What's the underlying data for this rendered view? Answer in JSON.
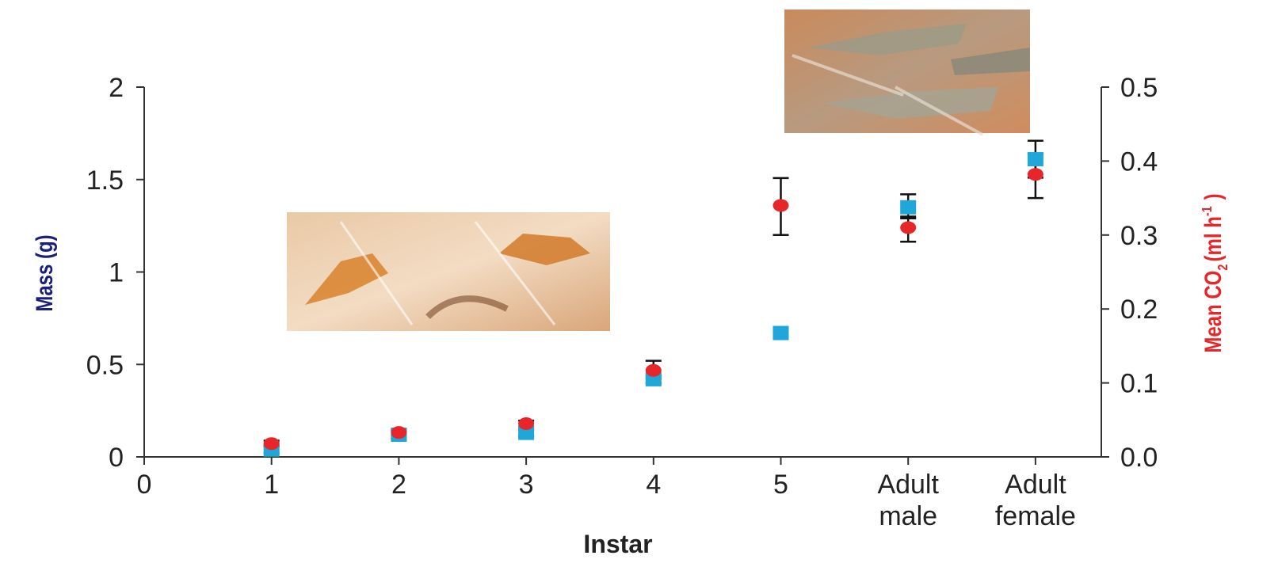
{
  "chart_data": {
    "type": "scatter",
    "title": "",
    "xlabel": "Instar",
    "ylabel_left": "Mass (g)",
    "ylabel_right": {
      "main": "Mean CO",
      "sub": "2",
      "unit": "(ml h",
      "sup": "-1",
      "close": ")"
    },
    "x_ticks": [
      {
        "value": 0,
        "lines": [
          "0"
        ]
      },
      {
        "value": 1,
        "lines": [
          "1"
        ]
      },
      {
        "value": 2,
        "lines": [
          "2"
        ]
      },
      {
        "value": 3,
        "lines": [
          "3"
        ]
      },
      {
        "value": 4,
        "lines": [
          "4"
        ]
      },
      {
        "value": 5,
        "lines": [
          "5"
        ]
      },
      {
        "value": 6,
        "lines": [
          "Adult",
          "male"
        ]
      },
      {
        "value": 7,
        "lines": [
          "Adult",
          "female"
        ]
      }
    ],
    "xlim": [
      0,
      7.5
    ],
    "ylim_left": [
      0,
      2
    ],
    "yticks_left": [
      "0",
      "0.5",
      "1",
      "1.5",
      "2"
    ],
    "ylim_right": [
      0,
      0.5
    ],
    "yticks_right": [
      "0.0",
      "0.1",
      "0.2",
      "0.3",
      "0.4",
      "0.5"
    ],
    "grid": false,
    "series": [
      {
        "axis": "left",
        "marker": "square",
        "color": "#1ea7d8",
        "x": [
          1,
          2,
          3,
          4,
          5,
          6,
          7
        ],
        "y": [
          0.04,
          0.12,
          0.13,
          0.42,
          0.67,
          1.35,
          1.61
        ],
        "err_low": [
          0.02,
          0.1,
          0.11,
          0.4,
          0.65,
          1.29,
          1.51
        ],
        "err_high": [
          0.06,
          0.14,
          0.15,
          0.44,
          0.69,
          1.42,
          1.71
        ]
      },
      {
        "axis": "right",
        "marker": "circle",
        "color": "#e8262a",
        "x": [
          1,
          2,
          3,
          4,
          5,
          6,
          7
        ],
        "y": [
          0.018,
          0.033,
          0.045,
          0.117,
          0.34,
          0.31,
          0.382
        ],
        "err_low": [
          0.014,
          0.029,
          0.041,
          0.106,
          0.3,
          0.291,
          0.35
        ],
        "err_high": [
          0.022,
          0.037,
          0.049,
          0.13,
          0.377,
          0.325,
          0.41
        ]
      }
    ],
    "colors": {
      "left_axis_label": "#1a1f7a",
      "right_axis_label": "#e8262a",
      "axis": "#333333"
    }
  },
  "images": [
    {
      "name": "nymph-locusts-photo"
    },
    {
      "name": "adult-locusts-photo"
    }
  ]
}
